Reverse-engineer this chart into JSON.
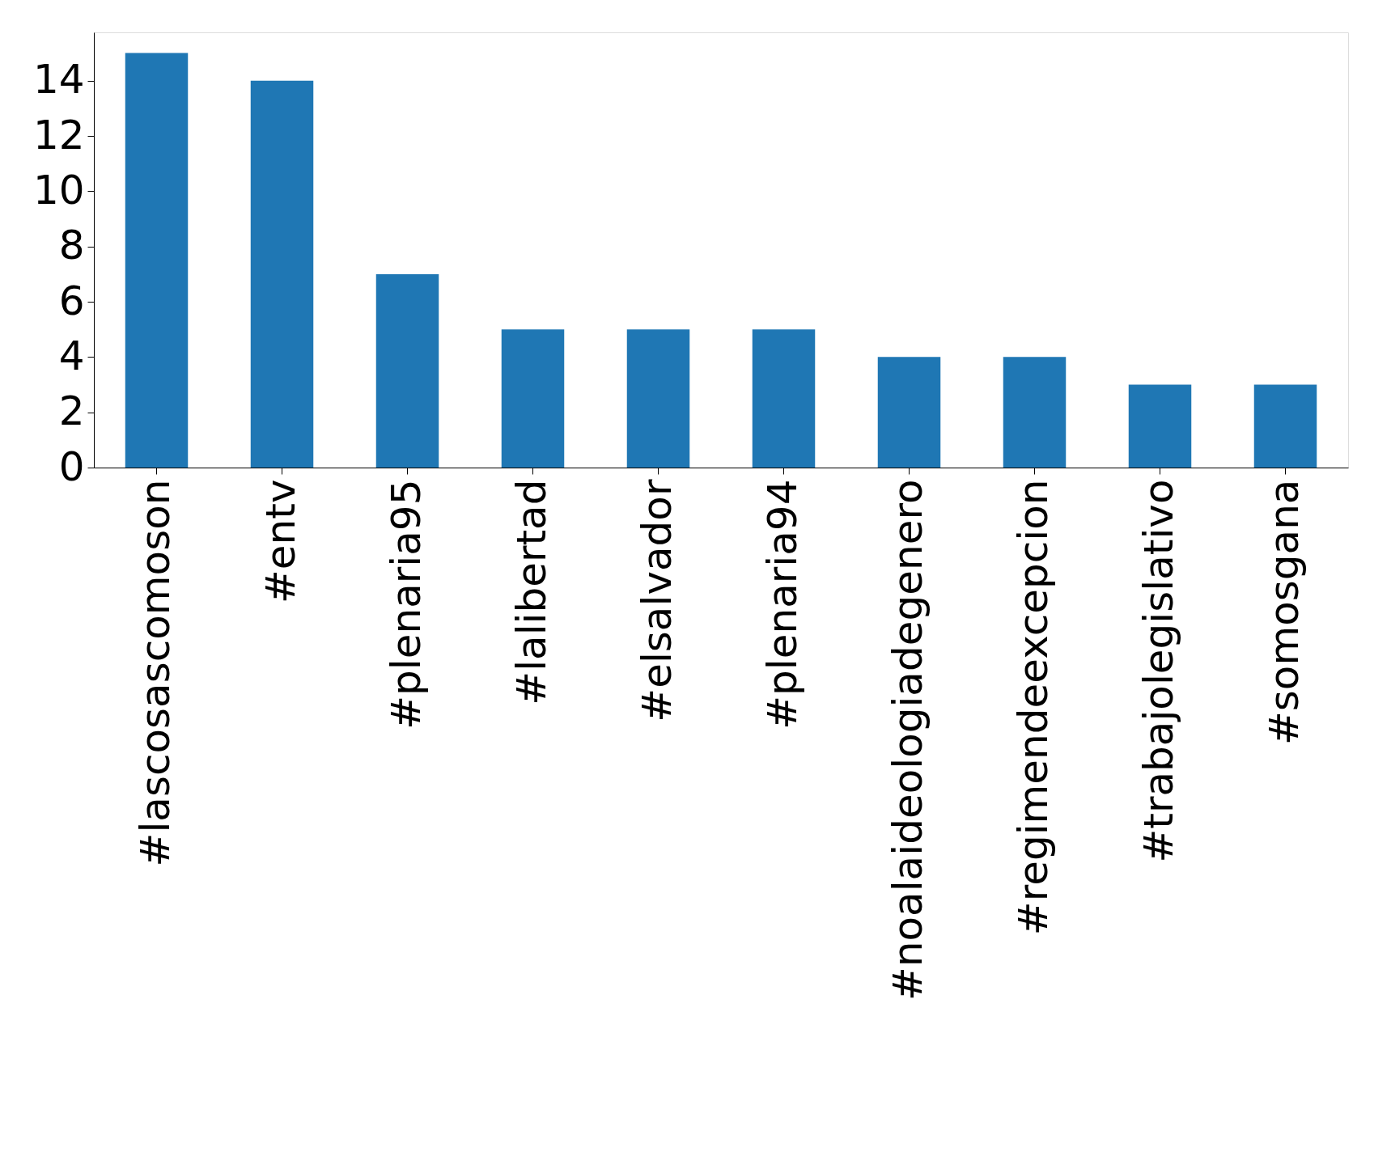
{
  "chart_data": {
    "type": "bar",
    "categories": [
      "#lascosascomoson",
      "#entv",
      "#plenaria95",
      "#lalibertad",
      "#elsalvador",
      "#plenaria94",
      "#noalaideologiadegenero",
      "#regimendeexcepcion",
      "#trabajolegislativo",
      "#somosgana"
    ],
    "values": [
      15,
      14,
      7,
      5,
      5,
      5,
      4,
      4,
      3,
      3
    ],
    "color": "#1f77b4",
    "ylim": [
      0,
      15.75
    ],
    "yticks": [
      0,
      2,
      4,
      6,
      8,
      10,
      12,
      14
    ],
    "grid": false
  }
}
